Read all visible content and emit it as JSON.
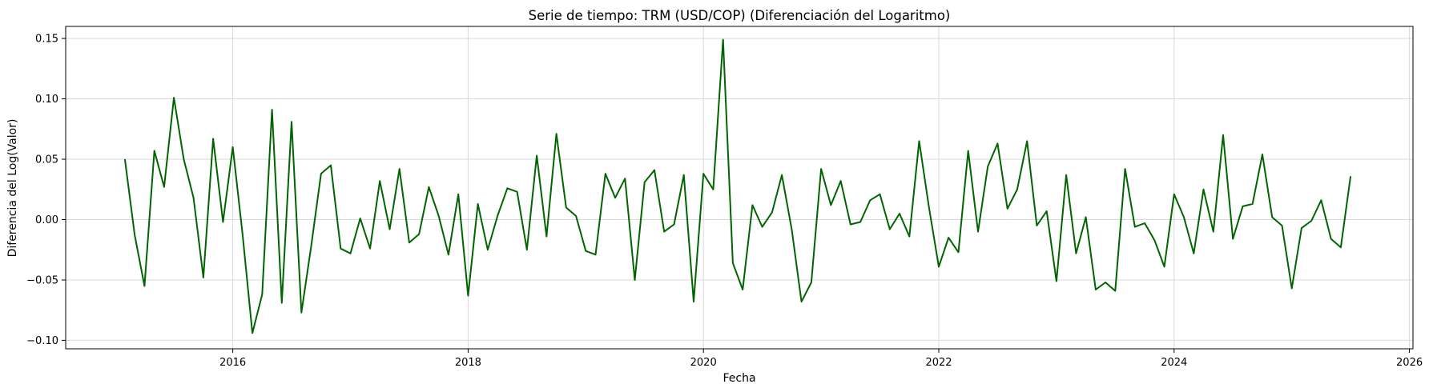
{
  "chart_data": {
    "type": "line",
    "title": "Serie de tiempo: TRM (USD/COP) (Diferenciación del Logaritmo)",
    "xlabel": "Fecha",
    "ylabel": "Diferencia del Log(Valor)",
    "x_range": [
      2014.58,
      2026.03
    ],
    "ylim": [
      -0.107,
      0.16
    ],
    "x_ticks": [
      2016,
      2018,
      2020,
      2022,
      2024,
      2026
    ],
    "x_tick_labels": [
      "2016",
      "2018",
      "2020",
      "2022",
      "2024",
      "2026"
    ],
    "y_ticks": [
      -0.1,
      -0.05,
      0.0,
      0.05,
      0.1,
      0.15
    ],
    "y_tick_labels": [
      "−0.10",
      "−0.05",
      "0.00",
      "0.05",
      "0.10",
      "0.15"
    ],
    "grid": true,
    "line_color": "#006400",
    "series": [
      {
        "x_start": "2015-02",
        "x_step": "1 month",
        "values": [
          0.05,
          -0.013,
          -0.055,
          0.057,
          0.027,
          0.101,
          0.05,
          0.018,
          -0.048,
          0.067,
          -0.002,
          0.06,
          -0.012,
          -0.094,
          -0.062,
          0.091,
          -0.069,
          0.081,
          -0.077,
          -0.022,
          0.038,
          0.045,
          -0.024,
          -0.028,
          0.001,
          -0.024,
          0.032,
          -0.008,
          0.042,
          -0.019,
          -0.012,
          0.027,
          0.003,
          -0.029,
          0.021,
          -0.063,
          0.013,
          -0.025,
          0.003,
          0.026,
          0.023,
          -0.025,
          0.053,
          -0.014,
          0.071,
          0.01,
          0.003,
          -0.026,
          -0.029,
          0.038,
          0.018,
          0.034,
          -0.05,
          0.031,
          0.041,
          -0.01,
          -0.004,
          0.037,
          -0.068,
          0.038,
          0.025,
          0.149,
          -0.036,
          -0.058,
          0.012,
          -0.006,
          0.006,
          0.037,
          -0.008,
          -0.068,
          -0.052,
          0.042,
          0.012,
          0.032,
          -0.004,
          -0.002,
          0.016,
          0.021,
          -0.008,
          0.005,
          -0.014,
          0.065,
          0.01,
          -0.039,
          -0.015,
          -0.027,
          0.057,
          -0.01,
          0.044,
          0.063,
          0.009,
          0.025,
          0.065,
          -0.005,
          0.007,
          -0.051,
          0.037,
          -0.028,
          0.002,
          -0.058,
          -0.052,
          -0.059,
          0.042,
          -0.006,
          -0.003,
          -0.017,
          -0.039,
          0.021,
          0.002,
          -0.028,
          0.025,
          -0.01,
          0.07,
          -0.016,
          0.011,
          0.013,
          0.054,
          0.002,
          -0.005,
          -0.057,
          -0.007,
          -0.001,
          0.016,
          -0.016,
          -0.023,
          0.036
        ]
      }
    ]
  }
}
